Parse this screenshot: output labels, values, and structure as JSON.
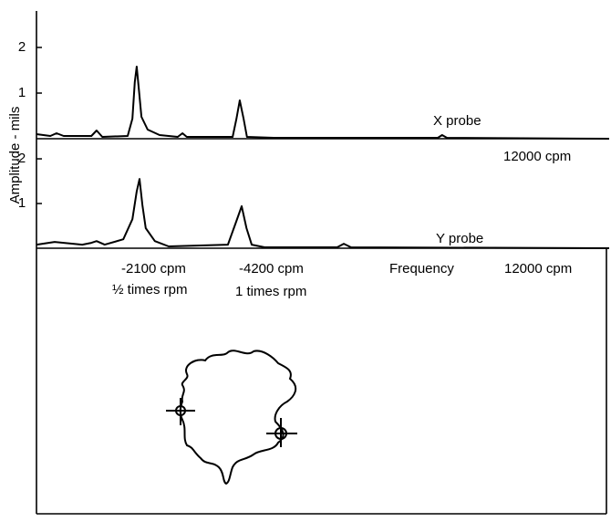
{
  "chart_data": [
    {
      "type": "line",
      "y_label": "Amplitude - mils",
      "x": [
        0,
        290,
        420,
        570,
        1150,
        1260,
        1380,
        1910,
        2010,
        2060,
        2100,
        2140,
        2200,
        2330,
        2580,
        2960,
        3060,
        3150,
        4110,
        4190,
        4260,
        4340,
        4410,
        4970,
        8410,
        8500,
        8600,
        12000
      ],
      "series": [
        {
          "name": "X probe",
          "color": "#000000",
          "values": [
            0.1,
            0.06,
            0.12,
            0.06,
            0.06,
            0.18,
            0.04,
            0.06,
            0.44,
            1.24,
            1.58,
            1.14,
            0.48,
            0.2,
            0.08,
            0.04,
            0.12,
            0.04,
            0.04,
            0.44,
            0.84,
            0.44,
            0.04,
            0.02,
            0.02,
            0.08,
            0.02,
            0
          ]
        }
      ],
      "xlim": [
        0,
        12000
      ],
      "ylim": [
        0,
        2.8
      ],
      "yticks": [
        1,
        2
      ],
      "annotations": [
        "12000 cpm"
      ]
    },
    {
      "type": "line",
      "x_label": "Frequency",
      "x": [
        0,
        380,
        960,
        1150,
        1260,
        1430,
        1820,
        2010,
        2100,
        2160,
        2220,
        2290,
        2480,
        2770,
        4010,
        4170,
        4300,
        4400,
        4510,
        4780,
        6300,
        6440,
        6590,
        12000
      ],
      "series": [
        {
          "name": "Y probe",
          "color": "#000000",
          "values": [
            0.08,
            0.14,
            0.08,
            0.12,
            0.16,
            0.08,
            0.2,
            0.65,
            1.27,
            1.55,
            0.96,
            0.45,
            0.16,
            0.04,
            0.08,
            0.55,
            0.94,
            0.45,
            0.08,
            0.02,
            0.02,
            0.1,
            0.02,
            0
          ]
        }
      ],
      "xlim": [
        0,
        12000
      ],
      "ylim": [
        0,
        2.45
      ],
      "yticks": [
        1,
        2
      ],
      "annotations": [
        "-2100 cpm",
        "½ times rpm",
        "-4200 cpm",
        "1 times rpm",
        "12000 cpm"
      ]
    }
  ]
}
